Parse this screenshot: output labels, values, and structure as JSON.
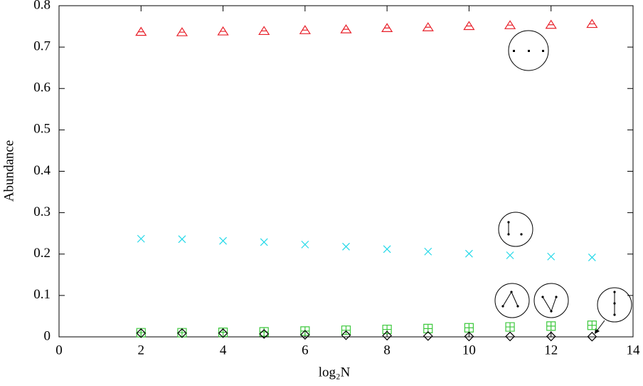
{
  "chart_data": {
    "type": "scatter",
    "xlabel": "log₂N",
    "ylabel": "Abundance",
    "series": [
      {
        "color": "#e8202a",
        "marker": "triangle",
        "x": [
          2,
          3,
          4,
          5,
          6,
          7,
          8,
          9,
          10,
          11,
          12,
          13
        ],
        "values": [
          0.737,
          0.736,
          0.738,
          0.739,
          0.741,
          0.743,
          0.746,
          0.748,
          0.751,
          0.753,
          0.754,
          0.756
        ]
      },
      {
        "color": "#22d8e8",
        "marker": "cross",
        "x": [
          2,
          3,
          4,
          5,
          6,
          7,
          8,
          9,
          10,
          11,
          12,
          13
        ],
        "values": [
          0.237,
          0.236,
          0.232,
          0.229,
          0.223,
          0.218,
          0.212,
          0.206,
          0.201,
          0.197,
          0.194,
          0.192
        ]
      },
      {
        "color": "#3cc83c",
        "marker": "boxplus",
        "x": [
          2,
          3,
          4,
          5,
          6,
          7,
          8,
          9,
          10,
          11,
          12,
          13
        ],
        "values": [
          0.01,
          0.01,
          0.011,
          0.012,
          0.014,
          0.016,
          0.018,
          0.02,
          0.022,
          0.024,
          0.026,
          0.028
        ]
      },
      {
        "color": "#000000",
        "marker": "diamond",
        "x": [
          2,
          3,
          4,
          5,
          6,
          7,
          8,
          9,
          10,
          11,
          12,
          13
        ],
        "values": [
          0.009,
          0.009,
          0.009,
          0.007,
          0.005,
          0.004,
          0.003,
          0.002,
          0.001,
          0.001,
          0.001,
          0.0005
        ]
      }
    ],
    "xlim": [
      0,
      14
    ],
    "xticks": [
      0,
      2,
      4,
      6,
      8,
      10,
      12,
      14
    ],
    "ylim": [
      0,
      0.8
    ],
    "yticks": [
      0,
      0.1,
      0.2,
      0.3,
      0.4,
      0.5,
      0.6,
      0.7,
      0.8
    ]
  }
}
